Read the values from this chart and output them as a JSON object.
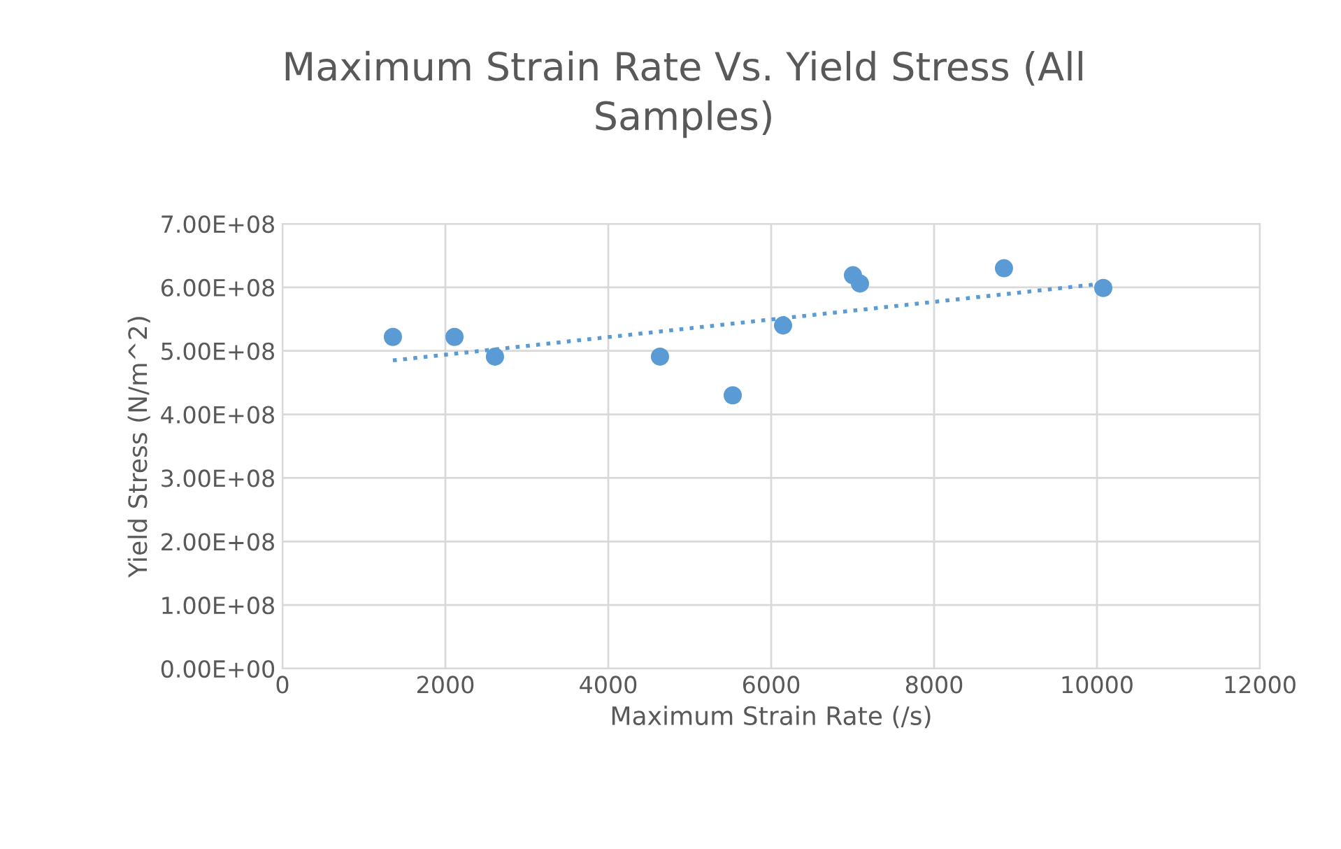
{
  "chart_data": {
    "type": "scatter",
    "title": "Maximum Strain Rate Vs. Yield Stress (All\nSamples)",
    "xlabel": "Maximum Strain Rate (/s)",
    "ylabel": "Yield Stress (N/m^2)",
    "series": [
      {
        "color": "#5b9bd5",
        "marker": "circle",
        "x": [
          1356,
          2112,
          2609,
          4635,
          5528,
          6146,
          7004,
          7090,
          8858,
          10077
        ],
        "values": [
          522000000,
          522000000,
          491000000,
          491000000,
          430000000,
          540000000,
          619000000,
          606000000,
          630000000,
          599000000
        ]
      },
      {
        "type": "line",
        "color": "#5b9bd5",
        "line_style": "dotted",
        "x": [
          1356,
          10077
        ],
        "values": [
          485000000,
          606000000
        ]
      }
    ],
    "xlim": [
      0,
      12000
    ],
    "xticks": [
      0,
      2000,
      4000,
      6000,
      8000,
      10000,
      12000
    ],
    "ylim": [
      0,
      700000000
    ],
    "yticks": [
      {
        "value": 0,
        "label": "0.00E+00"
      },
      {
        "value": 100000000,
        "label": "1.00E+08"
      },
      {
        "value": 200000000,
        "label": "2.00E+08"
      },
      {
        "value": 300000000,
        "label": "3.00E+08"
      },
      {
        "value": 400000000,
        "label": "4.00E+08"
      },
      {
        "value": 500000000,
        "label": "5.00E+08"
      },
      {
        "value": 600000000,
        "label": "6.00E+08"
      },
      {
        "value": 700000000,
        "label": "7.00E+08"
      }
    ],
    "grid": true
  }
}
